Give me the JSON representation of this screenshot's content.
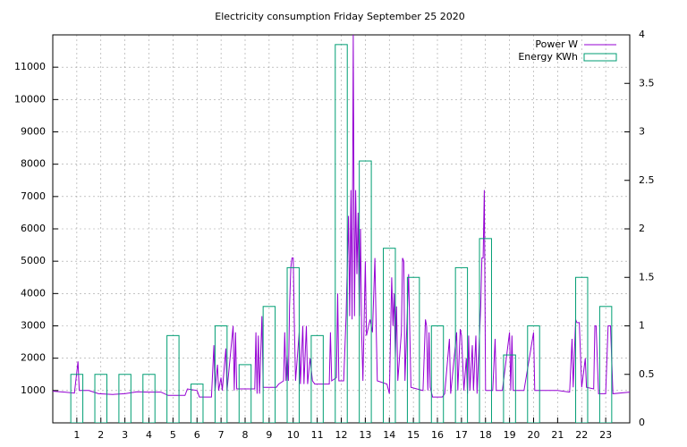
{
  "chart_data": {
    "type": "line",
    "title": "Electricity consumption Friday September 25 2020",
    "xlim": [
      0,
      24
    ],
    "xticks": [
      1,
      2,
      3,
      4,
      5,
      6,
      7,
      8,
      9,
      10,
      11,
      12,
      13,
      14,
      15,
      16,
      17,
      18,
      19,
      20,
      21,
      22,
      23
    ],
    "ylim": [
      0,
      12000
    ],
    "yticks": [
      1000,
      2000,
      3000,
      4000,
      5000,
      6000,
      7000,
      8000,
      9000,
      10000,
      11000
    ],
    "y2lim": [
      0,
      4
    ],
    "y2ticks": [
      0,
      0.5,
      1,
      1.5,
      2,
      2.5,
      3,
      3.5,
      4
    ],
    "grid": true,
    "legend": "top-right",
    "series": [
      {
        "name": "Power W",
        "color": "#9400d3",
        "style": "line",
        "x": [
          0,
          0.5,
          0.9,
          1.05,
          1.1,
          1.5,
          1.9,
          2.5,
          3,
          3.5,
          4,
          4.5,
          4.8,
          5.5,
          5.6,
          6,
          6.1,
          6.6,
          6.7,
          6.75,
          6.85,
          6.9,
          7,
          7.05,
          7.2,
          7.25,
          7.5,
          7.55,
          7.6,
          7.65,
          8.4,
          8.45,
          8.5,
          8.55,
          8.6,
          8.7,
          8.75,
          9.3,
          9.4,
          9.6,
          9.65,
          9.7,
          9.75,
          9.8,
          9.85,
          9.9,
          9.95,
          10,
          10.05,
          10.1,
          10.25,
          10.3,
          10.4,
          10.45,
          10.55,
          10.6,
          10.7,
          10.8,
          10.9,
          11.5,
          11.55,
          11.6,
          11.8,
          11.85,
          11.9,
          12.1,
          12.2,
          12.25,
          12.3,
          12.35,
          12.4,
          12.45,
          12.5,
          12.55,
          12.6,
          12.65,
          12.7,
          12.75,
          12.8,
          12.85,
          12.9,
          13,
          13.05,
          13.2,
          13.3,
          13.4,
          13.45,
          13.5,
          13.9,
          14,
          14.1,
          14.15,
          14.2,
          14.25,
          14.3,
          14.35,
          14.5,
          14.55,
          14.6,
          14.65,
          14.8,
          14.9,
          15.4,
          15.5,
          15.55,
          15.6,
          15.65,
          15.7,
          15.8,
          16.2,
          16.3,
          16.5,
          16.55,
          16.8,
          16.85,
          16.95,
          17,
          17.1,
          17.2,
          17.25,
          17.3,
          17.35,
          17.45,
          17.5,
          17.6,
          17.65,
          17.8,
          17.85,
          17.9,
          17.95,
          18,
          18.3,
          18.4,
          18.45,
          18.7,
          19,
          19.05,
          19.1,
          19.15,
          19.6,
          20,
          20.05,
          21,
          21.5,
          21.6,
          21.65,
          21.75,
          21.8,
          21.9,
          22,
          22.15,
          22.2,
          22.5,
          22.55,
          22.6,
          22.7,
          23,
          23.1,
          23.2,
          23.3,
          24
        ],
        "values": [
          980,
          950,
          920,
          1900,
          1000,
          1000,
          900,
          880,
          900,
          960,
          950,
          950,
          850,
          850,
          1050,
          1000,
          800,
          800,
          2400,
          1000,
          1800,
          1000,
          1400,
          1000,
          2300,
          1000,
          3000,
          1000,
          2800,
          1050,
          1050,
          2800,
          900,
          2700,
          900,
          3300,
          1100,
          1100,
          1200,
          1300,
          2800,
          1300,
          2100,
          1300,
          3600,
          4800,
          5100,
          5100,
          3000,
          1300,
          2800,
          1200,
          3000,
          1200,
          3000,
          1200,
          2000,
          1300,
          1200,
          1200,
          2800,
          1300,
          1400,
          4000,
          1300,
          1300,
          3300,
          4800,
          6400,
          3300,
          7200,
          3200,
          12000,
          3300,
          7200,
          4600,
          6500,
          3300,
          6000,
          2800,
          1300,
          5000,
          2700,
          3200,
          2800,
          5100,
          3000,
          1300,
          1200,
          900,
          4500,
          3000,
          4000,
          2000,
          3600,
          1300,
          2800,
          5100,
          5000,
          1300,
          4600,
          1100,
          1000,
          3200,
          3000,
          1000,
          2800,
          1100,
          800,
          800,
          900,
          2600,
          900,
          2800,
          1000,
          2900,
          2700,
          1000,
          2000,
          900,
          2700,
          1000,
          2400,
          1000,
          2700,
          900,
          3600,
          5100,
          5100,
          7200,
          1000,
          1000,
          2600,
          1000,
          1000,
          2800,
          1000,
          2700,
          1000,
          1000,
          2800,
          1000,
          1000,
          950,
          2600,
          1100,
          3200,
          3100,
          3100,
          1100,
          2000,
          1100,
          1050,
          3000,
          3000,
          900,
          900,
          3000,
          3000,
          900,
          950
        ]
      },
      {
        "name": "Energy KWh",
        "color": "#009e73",
        "style": "boxes",
        "axis": "y2",
        "x": [
          1,
          2,
          3,
          4,
          5,
          6,
          7,
          8,
          9,
          10,
          11,
          12,
          13,
          14,
          15,
          16,
          17,
          18,
          19,
          20,
          21,
          22,
          23
        ],
        "values": [
          0.5,
          0.5,
          0.5,
          0.5,
          0.9,
          0.4,
          1.0,
          0.6,
          1.2,
          1.6,
          0.9,
          3.9,
          2.7,
          1.8,
          1.5,
          1.0,
          1.6,
          1.9,
          0.7,
          1.0,
          null,
          1.5,
          1.2
        ]
      }
    ]
  }
}
